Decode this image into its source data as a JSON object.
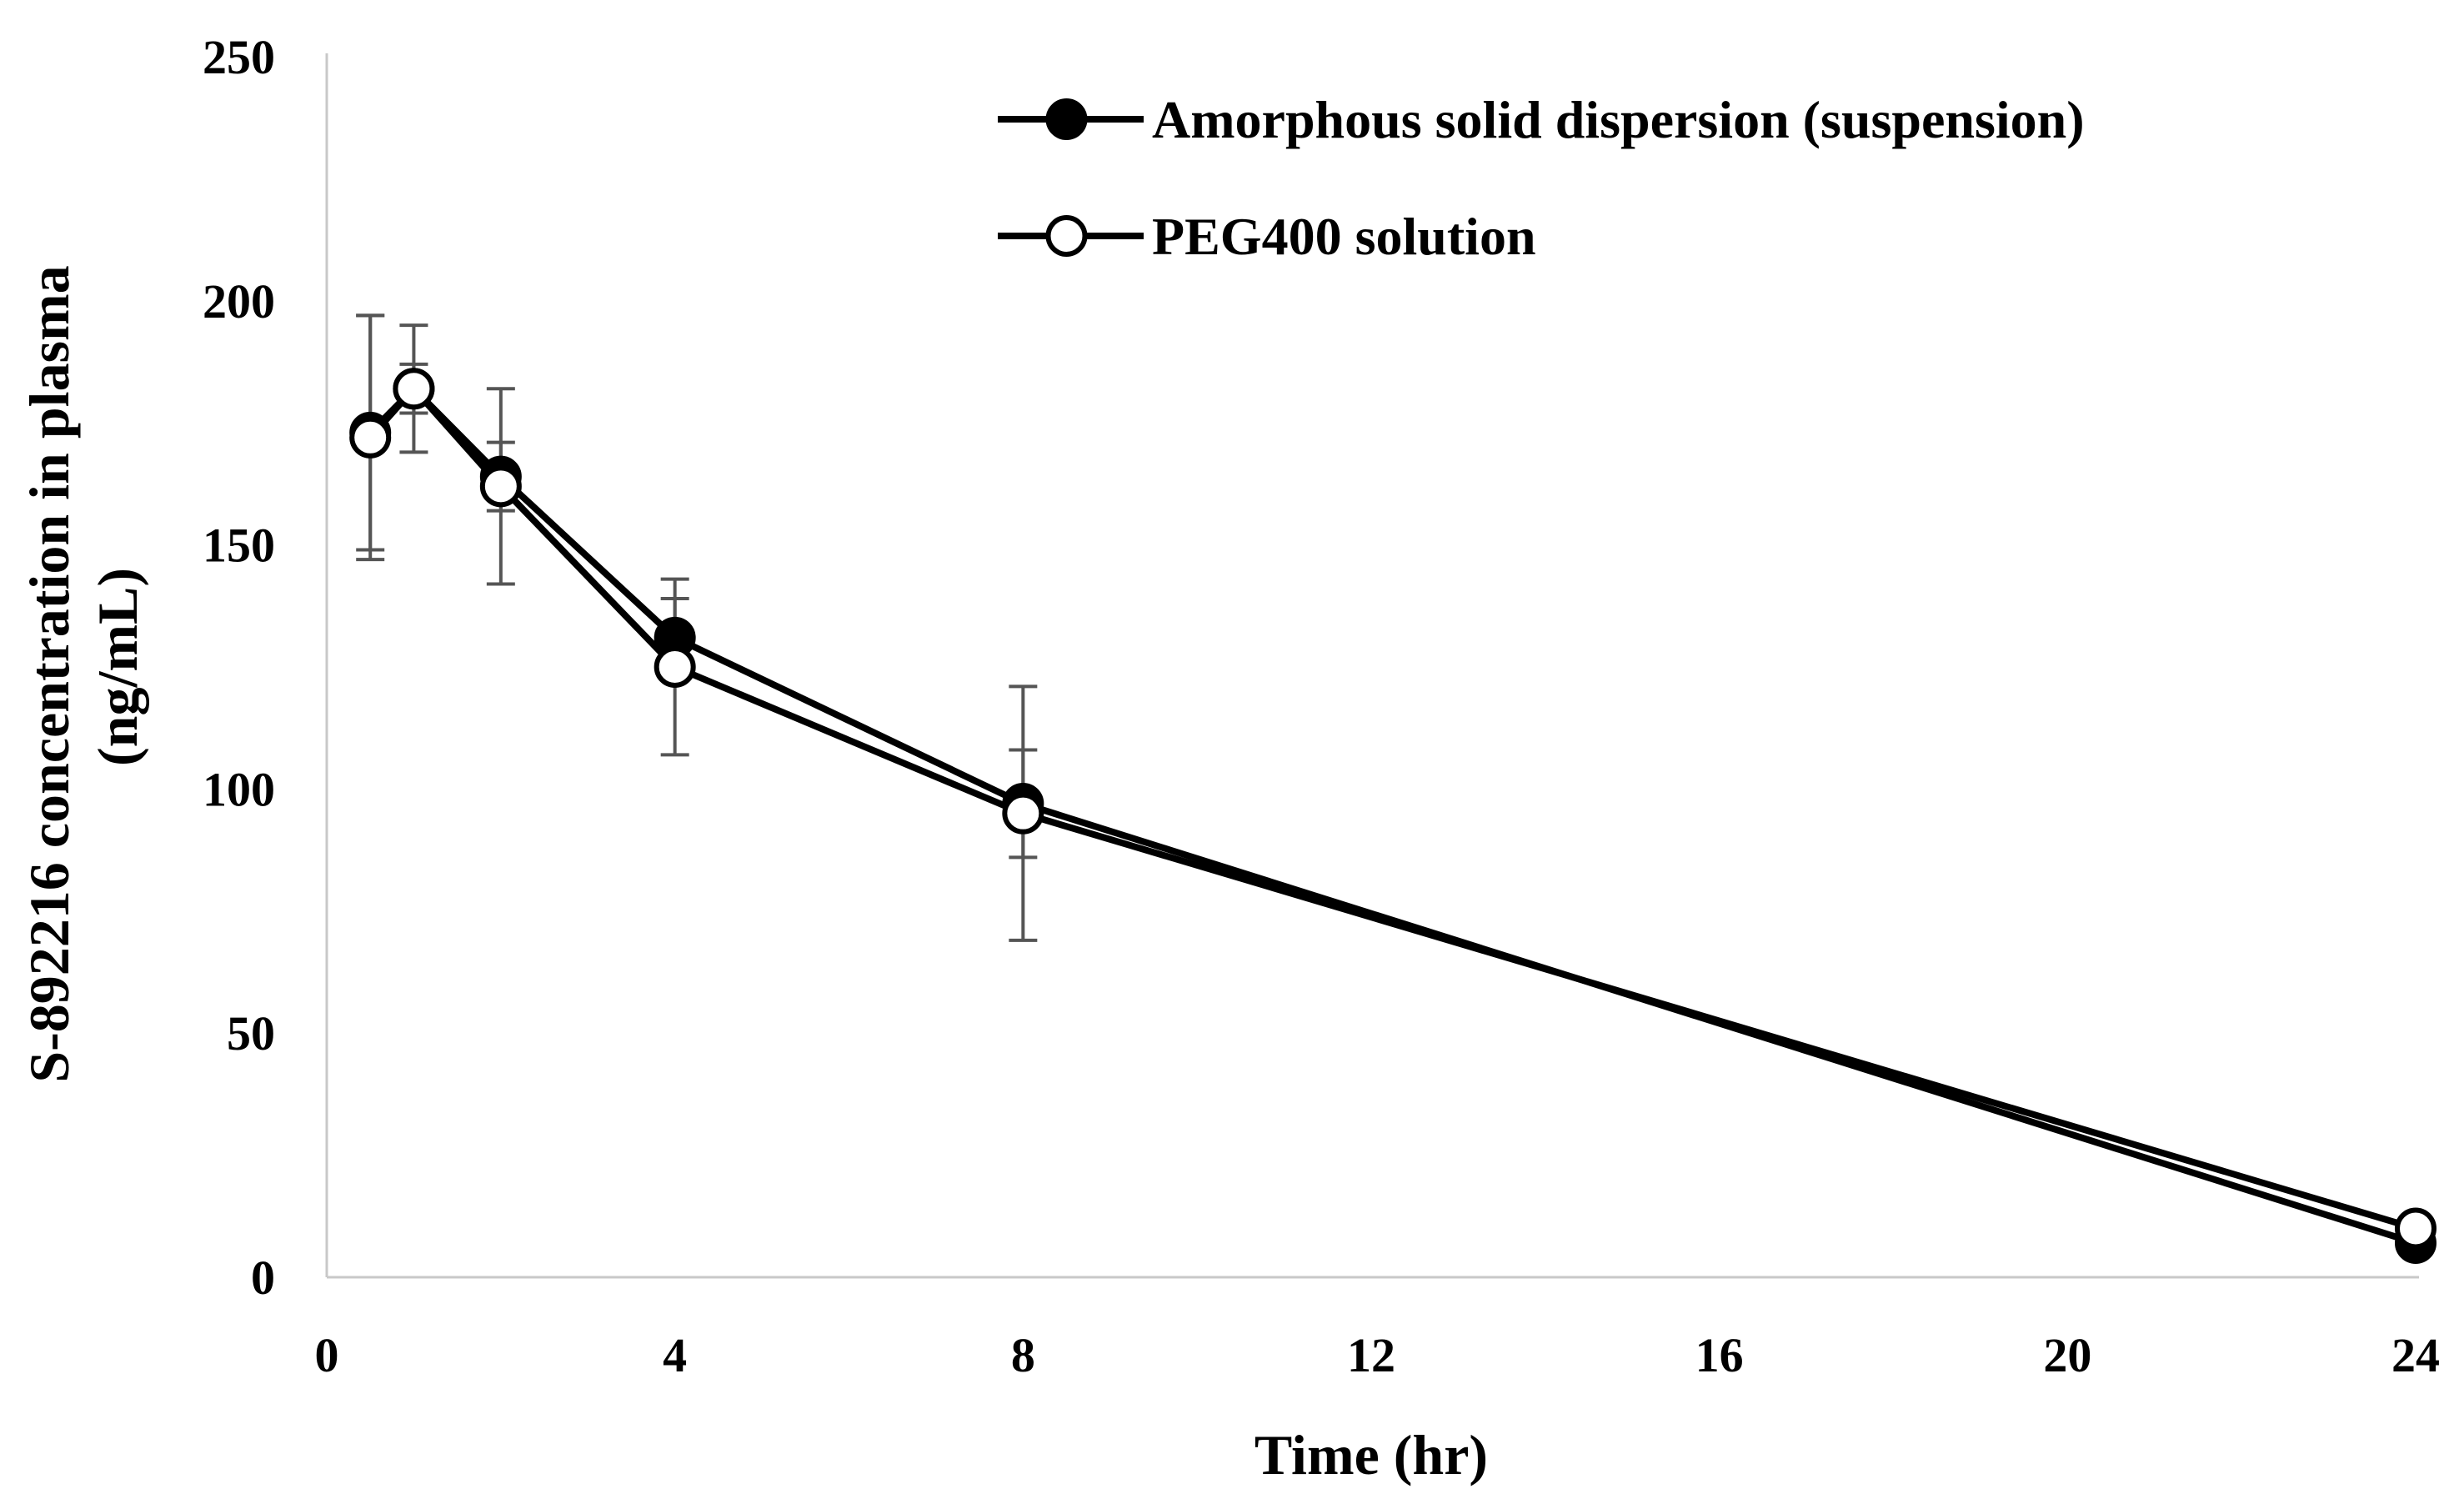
{
  "chart_data": {
    "type": "line",
    "title": "",
    "xlabel": "Time (hr)",
    "ylabel_line1": "S-892216 concentration in plasma",
    "ylabel_line2": "(ng/mL)",
    "xlim": [
      0,
      24
    ],
    "ylim": [
      0,
      250
    ],
    "xticks": [
      0,
      4,
      8,
      12,
      16,
      20,
      24
    ],
    "yticks": [
      0,
      50,
      100,
      150,
      200,
      250
    ],
    "grid": false,
    "legend_position": "top-right",
    "series": [
      {
        "name": "Amorphous solid dispersion (suspension)",
        "marker": "filled-circle",
        "color": "#000000",
        "x": [
          0.5,
          1,
          2,
          4,
          8,
          24
        ],
        "y": [
          173,
          182,
          164,
          131,
          97,
          7
        ],
        "err": [
          24,
          5,
          7,
          8,
          11,
          2
        ]
      },
      {
        "name": "PEG400 solution",
        "marker": "open-circle",
        "color": "#000000",
        "x": [
          0.5,
          1,
          2,
          4,
          8,
          24
        ],
        "y": [
          172,
          182,
          162,
          125,
          95,
          10
        ],
        "err": [
          25,
          13,
          20,
          18,
          26,
          2
        ]
      }
    ]
  }
}
